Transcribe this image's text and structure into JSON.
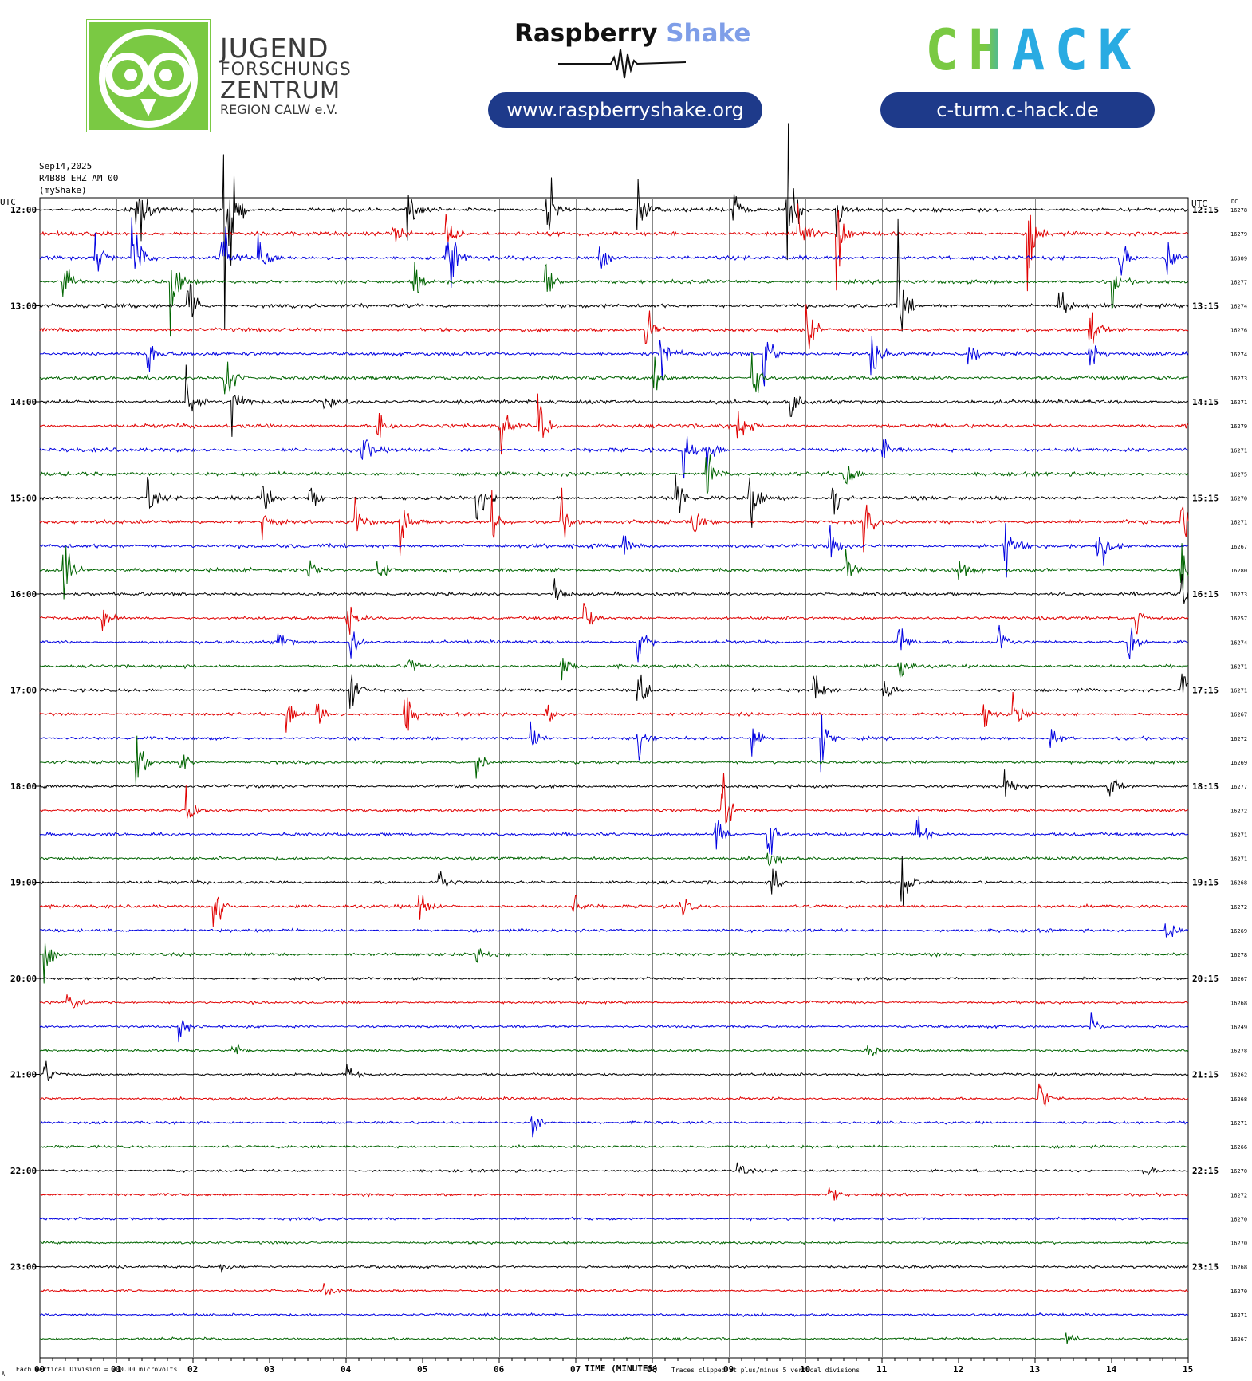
{
  "header": {
    "jfz": {
      "line1": "JUGEND",
      "line2": "FORSCHUNGS",
      "line3": "ZENTRUM",
      "line4": "REGION CALW e.V."
    },
    "rs": {
      "brand_a": "Raspberry",
      "brand_b": "Shake",
      "url": "www.raspberryshake.org"
    },
    "chack": {
      "logo": "CHACK",
      "url": "c-turm.c-hack.de"
    },
    "colors": {
      "green": "#7ac943",
      "blue_dark": "#1e3a8a",
      "cyan": "#29abe2",
      "shake_light": "#7f9ee8"
    }
  },
  "chart_data": {
    "type": "line",
    "date": "Sep14,2025",
    "station": "R4B88 EHZ AM 00",
    "network": "(myShake)",
    "left_axis_label": "UTC",
    "right_axis_label": "UTC",
    "dc_label": "DC",
    "xlabel": "TIME (MINUTES)",
    "x_ticks": [
      "00",
      "01",
      "02",
      "03",
      "04",
      "05",
      "06",
      "07",
      "08",
      "09",
      "10",
      "11",
      "12",
      "13",
      "14",
      "15"
    ],
    "xlim": [
      0,
      15
    ],
    "footer_left": "Each Vertical Division =  200.00 microvolts",
    "footer_right": "Traces clipped at plus/minus 5 vertical divisions",
    "footer_corner": "Å",
    "hour_labels_left": [
      "12:00",
      "13:00",
      "14:00",
      "15:00",
      "16:00",
      "17:00",
      "18:00",
      "19:00",
      "20:00",
      "21:00",
      "22:00",
      "23:00"
    ],
    "hour_labels_right": [
      "12:15",
      "13:15",
      "14:15",
      "15:15",
      "16:15",
      "17:15",
      "18:15",
      "19:15",
      "20:15",
      "21:15",
      "22:15",
      "23:15"
    ],
    "trace_colors": [
      "#000000",
      "#e00000",
      "#0000e0",
      "#006400"
    ],
    "dc_values": [
      16278,
      16279,
      16309,
      16277,
      16274,
      16276,
      16274,
      16273,
      16271,
      16279,
      16271,
      16275,
      16270,
      16271,
      16267,
      16280,
      16273,
      16257,
      16274,
      16271,
      16271,
      16267,
      16272,
      16269,
      16277,
      16272,
      16271,
      16271,
      16268,
      16272,
      16269,
      16278,
      16267,
      16268,
      16249,
      16278,
      16262,
      16268,
      16271,
      16266,
      16270,
      16272,
      16270,
      16270,
      16268,
      16270,
      16271,
      16267
    ],
    "events": [
      {
        "trace": 0,
        "min": 1.25,
        "amp": 3
      },
      {
        "trace": 0,
        "min": 2.4,
        "amp": 9
      },
      {
        "trace": 0,
        "min": 4.8,
        "amp": 1.5
      },
      {
        "trace": 0,
        "min": 6.6,
        "amp": 3
      },
      {
        "trace": 0,
        "min": 7.8,
        "amp": 1.5
      },
      {
        "trace": 0,
        "min": 9.05,
        "amp": 1
      },
      {
        "trace": 0,
        "min": 9.75,
        "amp": 4
      },
      {
        "trace": 0,
        "min": 10.4,
        "amp": 1.2
      },
      {
        "trace": 1,
        "min": 4.6,
        "amp": 1
      },
      {
        "trace": 1,
        "min": 5.3,
        "amp": 1.5
      },
      {
        "trace": 1,
        "min": 9.9,
        "amp": 2
      },
      {
        "trace": 1,
        "min": 10.4,
        "amp": 3
      },
      {
        "trace": 1,
        "min": 12.9,
        "amp": 2
      },
      {
        "trace": 2,
        "min": 0.7,
        "amp": 2
      },
      {
        "trace": 2,
        "min": 1.2,
        "amp": 3
      },
      {
        "trace": 2,
        "min": 2.35,
        "amp": 3
      },
      {
        "trace": 2,
        "min": 2.85,
        "amp": 1.5
      },
      {
        "trace": 2,
        "min": 5.3,
        "amp": 3
      },
      {
        "trace": 2,
        "min": 7.3,
        "amp": 1
      },
      {
        "trace": 2,
        "min": 14.1,
        "amp": 1.2
      },
      {
        "trace": 2,
        "min": 14.7,
        "amp": 1.5
      },
      {
        "trace": 3,
        "min": 0.3,
        "amp": 1.5
      },
      {
        "trace": 3,
        "min": 1.7,
        "amp": 2.5
      },
      {
        "trace": 3,
        "min": 4.85,
        "amp": 1.5
      },
      {
        "trace": 3,
        "min": 6.6,
        "amp": 1.5
      },
      {
        "trace": 3,
        "min": 14,
        "amp": 1
      },
      {
        "trace": 4,
        "min": 1.9,
        "amp": 3
      },
      {
        "trace": 4,
        "min": 11.2,
        "amp": 3
      },
      {
        "trace": 4,
        "min": 13.3,
        "amp": 1.5
      },
      {
        "trace": 5,
        "min": 7.9,
        "amp": 1.5
      },
      {
        "trace": 5,
        "min": 10.0,
        "amp": 1.5
      },
      {
        "trace": 5,
        "min": 13.7,
        "amp": 1.5
      },
      {
        "trace": 6,
        "min": 1.4,
        "amp": 1.2
      },
      {
        "trace": 6,
        "min": 8.1,
        "amp": 1.5
      },
      {
        "trace": 6,
        "min": 9.45,
        "amp": 2
      },
      {
        "trace": 6,
        "min": 10.85,
        "amp": 1.5
      },
      {
        "trace": 6,
        "min": 12.1,
        "amp": 1.2
      },
      {
        "trace": 6,
        "min": 13.7,
        "amp": 1.2
      },
      {
        "trace": 7,
        "min": 2.4,
        "amp": 2
      },
      {
        "trace": 7,
        "min": 8.0,
        "amp": 1.2
      },
      {
        "trace": 7,
        "min": 9.3,
        "amp": 1.5
      },
      {
        "trace": 8,
        "min": 1.9,
        "amp": 2
      },
      {
        "trace": 8,
        "min": 2.5,
        "amp": 2
      },
      {
        "trace": 8,
        "min": 3.7,
        "amp": 1
      },
      {
        "trace": 8,
        "min": 9.8,
        "amp": 1
      },
      {
        "trace": 9,
        "min": 4.4,
        "amp": 1.5
      },
      {
        "trace": 9,
        "min": 6.0,
        "amp": 1.5
      },
      {
        "trace": 9,
        "min": 6.5,
        "amp": 1.5
      },
      {
        "trace": 9,
        "min": 9.1,
        "amp": 1.5
      },
      {
        "trace": 10,
        "min": 4.2,
        "amp": 1.2
      },
      {
        "trace": 10,
        "min": 8.4,
        "amp": 1.2
      },
      {
        "trace": 10,
        "min": 8.7,
        "amp": 1.2
      },
      {
        "trace": 10,
        "min": 11.0,
        "amp": 1
      },
      {
        "trace": 11,
        "min": 8.7,
        "amp": 1.5
      },
      {
        "trace": 11,
        "min": 10.5,
        "amp": 1.2
      },
      {
        "trace": 12,
        "min": 1.4,
        "amp": 1
      },
      {
        "trace": 12,
        "min": 2.9,
        "amp": 1
      },
      {
        "trace": 12,
        "min": 3.5,
        "amp": 1
      },
      {
        "trace": 12,
        "min": 5.7,
        "amp": 1.2
      },
      {
        "trace": 12,
        "min": 8.3,
        "amp": 1.5
      },
      {
        "trace": 12,
        "min": 9.25,
        "amp": 2.5
      },
      {
        "trace": 12,
        "min": 10.35,
        "amp": 1.2
      },
      {
        "trace": 13,
        "min": 2.9,
        "amp": 1
      },
      {
        "trace": 13,
        "min": 4.1,
        "amp": 1.2
      },
      {
        "trace": 13,
        "min": 4.7,
        "amp": 1.2
      },
      {
        "trace": 13,
        "min": 5.9,
        "amp": 1.2
      },
      {
        "trace": 13,
        "min": 6.8,
        "amp": 1.2
      },
      {
        "trace": 13,
        "min": 8.5,
        "amp": 1.2
      },
      {
        "trace": 13,
        "min": 10.75,
        "amp": 1.2
      },
      {
        "trace": 13,
        "min": 14.9,
        "amp": 1.5
      },
      {
        "trace": 14,
        "min": 7.6,
        "amp": 0.8
      },
      {
        "trace": 14,
        "min": 10.3,
        "amp": 1
      },
      {
        "trace": 14,
        "min": 12.6,
        "amp": 2
      },
      {
        "trace": 14,
        "min": 13.8,
        "amp": 2
      },
      {
        "trace": 15,
        "min": 0.3,
        "amp": 2
      },
      {
        "trace": 15,
        "min": 3.5,
        "amp": 1
      },
      {
        "trace": 15,
        "min": 4.4,
        "amp": 1
      },
      {
        "trace": 15,
        "min": 10.5,
        "amp": 1.5
      },
      {
        "trace": 15,
        "min": 12.0,
        "amp": 1
      },
      {
        "trace": 15,
        "min": 14.9,
        "amp": 1.5
      },
      {
        "trace": 16,
        "min": 6.7,
        "amp": 1
      },
      {
        "trace": 16,
        "min": 14.9,
        "amp": 1
      },
      {
        "trace": 17,
        "min": 0.8,
        "amp": 1
      },
      {
        "trace": 17,
        "min": 4.0,
        "amp": 1.2
      },
      {
        "trace": 17,
        "min": 7.1,
        "amp": 1
      },
      {
        "trace": 17,
        "min": 14.3,
        "amp": 1
      },
      {
        "trace": 18,
        "min": 3.1,
        "amp": 1
      },
      {
        "trace": 18,
        "min": 4.05,
        "amp": 1.5
      },
      {
        "trace": 18,
        "min": 7.8,
        "amp": 1.5
      },
      {
        "trace": 18,
        "min": 11.2,
        "amp": 1.2
      },
      {
        "trace": 18,
        "min": 12.5,
        "amp": 1.2
      },
      {
        "trace": 18,
        "min": 14.2,
        "amp": 1.2
      },
      {
        "trace": 19,
        "min": 4.8,
        "amp": 1
      },
      {
        "trace": 19,
        "min": 6.8,
        "amp": 1
      },
      {
        "trace": 19,
        "min": 11.2,
        "amp": 1.2
      },
      {
        "trace": 20,
        "min": 4.05,
        "amp": 1.5
      },
      {
        "trace": 20,
        "min": 7.8,
        "amp": 1.5
      },
      {
        "trace": 20,
        "min": 10.1,
        "amp": 1.2
      },
      {
        "trace": 20,
        "min": 11.0,
        "amp": 1
      },
      {
        "trace": 20,
        "min": 14.9,
        "amp": 1.2
      },
      {
        "trace": 21,
        "min": 3.2,
        "amp": 1.2
      },
      {
        "trace": 21,
        "min": 3.6,
        "amp": 1.2
      },
      {
        "trace": 21,
        "min": 4.75,
        "amp": 1.5
      },
      {
        "trace": 21,
        "min": 6.6,
        "amp": 1
      },
      {
        "trace": 21,
        "min": 12.3,
        "amp": 1
      },
      {
        "trace": 21,
        "min": 12.7,
        "amp": 1.2
      },
      {
        "trace": 22,
        "min": 6.4,
        "amp": 1
      },
      {
        "trace": 22,
        "min": 7.8,
        "amp": 1.5
      },
      {
        "trace": 22,
        "min": 9.3,
        "amp": 1.2
      },
      {
        "trace": 22,
        "min": 10.2,
        "amp": 1.2
      },
      {
        "trace": 22,
        "min": 13.2,
        "amp": 0.8
      },
      {
        "trace": 23,
        "min": 1.25,
        "amp": 1.5
      },
      {
        "trace": 23,
        "min": 1.8,
        "amp": 1.2
      },
      {
        "trace": 23,
        "min": 5.7,
        "amp": 1
      },
      {
        "trace": 24,
        "min": 12.6,
        "amp": 1
      },
      {
        "trace": 24,
        "min": 13.95,
        "amp": 1
      },
      {
        "trace": 25,
        "min": 1.9,
        "amp": 1.2
      },
      {
        "trace": 25,
        "min": 8.9,
        "amp": 2
      },
      {
        "trace": 26,
        "min": 8.8,
        "amp": 2
      },
      {
        "trace": 26,
        "min": 9.5,
        "amp": 1.5
      },
      {
        "trace": 26,
        "min": 11.45,
        "amp": 1.2
      },
      {
        "trace": 27,
        "min": 9.5,
        "amp": 1
      },
      {
        "trace": 28,
        "min": 5.2,
        "amp": 1
      },
      {
        "trace": 28,
        "min": 9.55,
        "amp": 1.2
      },
      {
        "trace": 28,
        "min": 11.25,
        "amp": 1.5
      },
      {
        "trace": 29,
        "min": 2.25,
        "amp": 2
      },
      {
        "trace": 29,
        "min": 4.95,
        "amp": 1
      },
      {
        "trace": 29,
        "min": 6.95,
        "amp": 1
      },
      {
        "trace": 29,
        "min": 8.35,
        "amp": 1
      },
      {
        "trace": 30,
        "min": 14.7,
        "amp": 1
      },
      {
        "trace": 31,
        "min": 0.05,
        "amp": 1.2
      },
      {
        "trace": 31,
        "min": 5.7,
        "amp": 0.5
      },
      {
        "trace": 33,
        "min": 0.35,
        "amp": 1.2
      },
      {
        "trace": 34,
        "min": 1.8,
        "amp": 1
      },
      {
        "trace": 34,
        "min": 13.7,
        "amp": 0.8
      },
      {
        "trace": 35,
        "min": 2.5,
        "amp": 0.8
      },
      {
        "trace": 35,
        "min": 10.8,
        "amp": 0.6
      },
      {
        "trace": 36,
        "min": 0.05,
        "amp": 0.8
      },
      {
        "trace": 36,
        "min": 4.0,
        "amp": 0.6
      },
      {
        "trace": 37,
        "min": 13.05,
        "amp": 1
      },
      {
        "trace": 38,
        "min": 6.4,
        "amp": 1
      },
      {
        "trace": 40,
        "min": 9.1,
        "amp": 0.5
      },
      {
        "trace": 40,
        "min": 14.4,
        "amp": 0.5
      },
      {
        "trace": 41,
        "min": 10.3,
        "amp": 0.5
      },
      {
        "trace": 44,
        "min": 2.35,
        "amp": 0.4
      },
      {
        "trace": 45,
        "min": 3.7,
        "amp": 0.5
      },
      {
        "trace": 47,
        "min": 13.4,
        "amp": 0.5
      }
    ]
  }
}
